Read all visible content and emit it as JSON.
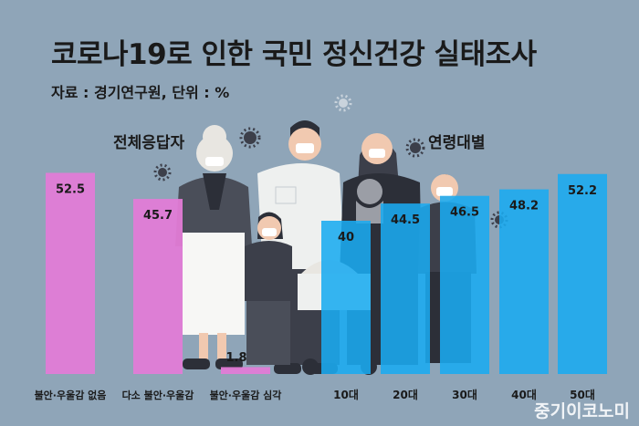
{
  "title": "코로나19로 인한 국민 정신건강 실태조사",
  "subtitle": "자료 : 경기연구원, 단위 : %",
  "watermark": "중기이코노미",
  "colors": {
    "background": "#8fa5b8",
    "pink": "#e27bd6",
    "blue": "#1aabf0",
    "text": "#1a1a1a"
  },
  "chart_data": [
    {
      "type": "bar",
      "title": "전체응답자",
      "categories": [
        "불안·우울감 없음",
        "다소 불안·우울감",
        "불안·우울감 심각"
      ],
      "values": [
        52.5,
        45.7,
        1.8
      ],
      "unit": "%"
    },
    {
      "type": "bar",
      "title": "연령대별",
      "categories": [
        "10대",
        "20대",
        "30대",
        "40대",
        "50대"
      ],
      "values": [
        40,
        44.5,
        46.5,
        48.2,
        52.2
      ],
      "unit": "%"
    }
  ]
}
